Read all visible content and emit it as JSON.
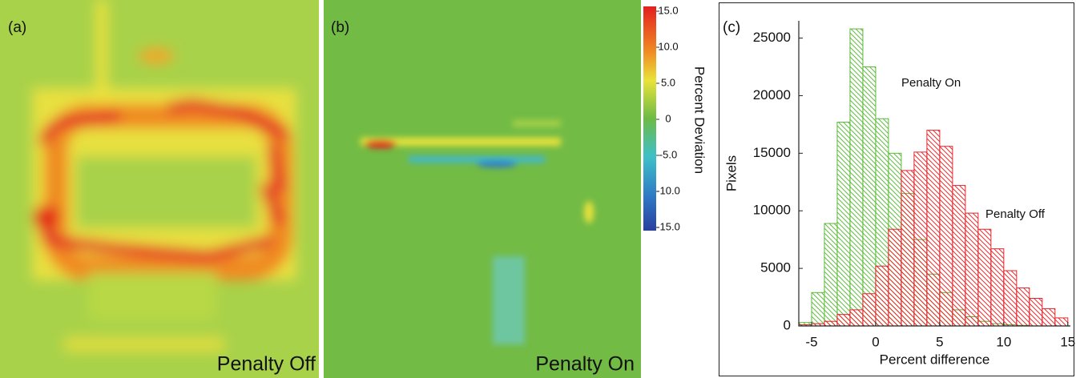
{
  "chart_data": [
    {
      "type": "heatmap",
      "panel_label": "(a)",
      "annotation": "Penalty Off"
    },
    {
      "type": "heatmap",
      "panel_label": "(b)",
      "annotation": "Penalty On",
      "colorbar": {
        "title": "Percent Deviation",
        "clim": [
          -15,
          15
        ],
        "ticks": [
          {
            "value": 15,
            "label": "15.0"
          },
          {
            "value": 10,
            "label": "10.0"
          },
          {
            "value": 5,
            "label": "5.0"
          },
          0,
          {
            "value": -5,
            "label": "-5.0"
          },
          {
            "value": -10,
            "label": "-10.0"
          },
          {
            "value": -15,
            "label": "-15.0"
          }
        ]
      }
    },
    {
      "type": "histogram",
      "panel_label": "(c)",
      "x_label": "Percent difference",
      "y_label": "Pixels",
      "bins": [
        -6,
        -5,
        -4,
        -3,
        -2,
        -1,
        0,
        1,
        2,
        3,
        4,
        5,
        6,
        7,
        8,
        9,
        10,
        11,
        12,
        13,
        14,
        15
      ],
      "series": [
        {
          "name": "Penalty On",
          "color": "#5cb83a",
          "values": [
            300,
            2900,
            8900,
            17700,
            25800,
            22500,
            18000,
            15000,
            11500,
            7500,
            4500,
            2900,
            1400,
            800,
            400,
            200,
            100,
            50,
            0,
            0,
            0
          ]
        },
        {
          "name": "Penalty Off",
          "color": "#e2262b",
          "values": [
            100,
            200,
            400,
            1000,
            1400,
            2800,
            5200,
            8400,
            13500,
            15100,
            17000,
            15600,
            12200,
            9800,
            8400,
            6700,
            4800,
            3300,
            2400,
            1500,
            700
          ]
        }
      ],
      "xlim": [
        -6,
        15.2
      ],
      "xticks": [
        -5,
        0,
        5,
        10,
        15
      ],
      "ylim": [
        0,
        26500
      ],
      "yticks": [
        0,
        5000,
        10000,
        15000,
        20000,
        25000
      ]
    }
  ]
}
